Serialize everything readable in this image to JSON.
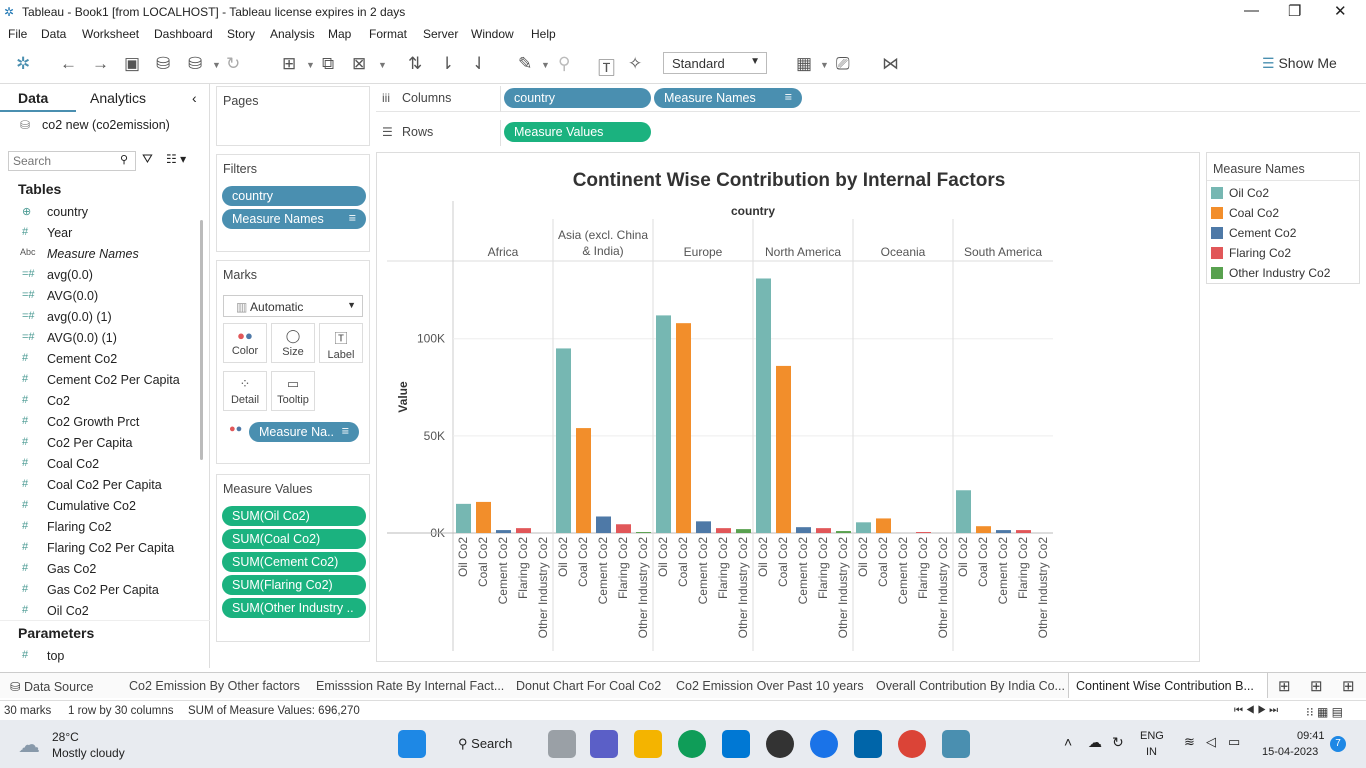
{
  "window": {
    "title": "Tableau - Book1 [from LOCALHOST] - Tableau license expires in 2 days"
  },
  "menu": [
    "File",
    "Data",
    "Worksheet",
    "Dashboard",
    "Story",
    "Analysis",
    "Map",
    "Format",
    "Server",
    "Window",
    "Help"
  ],
  "toolbar": {
    "fit": "Standard",
    "show_me": "Show Me"
  },
  "left": {
    "tab_data": "Data",
    "tab_analytics": "Analytics",
    "datasource": "co2 new (co2emission)",
    "search_placeholder": "Search",
    "tables_label": "Tables",
    "fields": [
      {
        "icon": "globe",
        "name": "country"
      },
      {
        "icon": "#",
        "name": "Year"
      },
      {
        "icon": "Abc",
        "name": "Measure Names"
      },
      {
        "icon": "=#",
        "name": "avg(0.0)"
      },
      {
        "icon": "=#",
        "name": "AVG(0.0)"
      },
      {
        "icon": "=#",
        "name": "avg(0.0) (1)"
      },
      {
        "icon": "=#",
        "name": "AVG(0.0) (1)"
      },
      {
        "icon": "#",
        "name": "Cement Co2"
      },
      {
        "icon": "#",
        "name": "Cement Co2 Per Capita"
      },
      {
        "icon": "#",
        "name": "Co2"
      },
      {
        "icon": "#",
        "name": "Co2 Growth Prct"
      },
      {
        "icon": "#",
        "name": "Co2 Per Capita"
      },
      {
        "icon": "#",
        "name": "Coal Co2"
      },
      {
        "icon": "#",
        "name": "Coal Co2 Per Capita"
      },
      {
        "icon": "#",
        "name": "Cumulative Co2"
      },
      {
        "icon": "#",
        "name": "Flaring Co2"
      },
      {
        "icon": "#",
        "name": "Flaring Co2 Per Capita"
      },
      {
        "icon": "#",
        "name": "Gas Co2"
      },
      {
        "icon": "#",
        "name": "Gas Co2 Per Capita"
      },
      {
        "icon": "#",
        "name": "Oil Co2"
      }
    ],
    "parameters_label": "Parameters",
    "parameters": [
      {
        "icon": "#",
        "name": "top"
      }
    ]
  },
  "cards": {
    "pages": "Pages",
    "filters": "Filters",
    "filter_pills": [
      "country",
      "Measure Names"
    ],
    "marks": "Marks",
    "mark_type": "Automatic",
    "mark_buttons": [
      "Color",
      "Size",
      "Label",
      "Detail",
      "Tooltip"
    ],
    "marks_pill": "Measure Na..",
    "measure_values": "Measure Values",
    "mv_pills": [
      "SUM(Oil Co2)",
      "SUM(Coal Co2)",
      "SUM(Cement Co2)",
      "SUM(Flaring Co2)",
      "SUM(Other Industry .."
    ]
  },
  "shelves": {
    "columns": "Columns",
    "rows": "Rows",
    "col_pills": [
      "country",
      "Measure Names"
    ],
    "row_pills": [
      "Measure Values"
    ]
  },
  "legend": {
    "title": "Measure Names",
    "items": [
      {
        "name": "Oil Co2",
        "color": "#76b7b2"
      },
      {
        "name": "Coal Co2",
        "color": "#f28e2b"
      },
      {
        "name": "Cement Co2",
        "color": "#4e79a7"
      },
      {
        "name": "Flaring Co2",
        "color": "#e15759"
      },
      {
        "name": "Other Industry Co2",
        "color": "#59a14f"
      }
    ]
  },
  "chart_data": {
    "type": "bar",
    "title": "Continent Wise Contribution by Internal Factors",
    "header": "country",
    "ylabel": "Value",
    "ylim": [
      0,
      140000
    ],
    "y_ticks": [
      {
        "v": 0,
        "label": "0K"
      },
      {
        "v": 50000,
        "label": "50K"
      },
      {
        "v": 100000,
        "label": "100K"
      }
    ],
    "categories": [
      "Africa",
      "Asia (excl. China & India)",
      "Europe",
      "North America",
      "Oceania",
      "South America"
    ],
    "measures": [
      "Oil Co2",
      "Coal Co2",
      "Cement Co2",
      "Flaring Co2",
      "Other Industry Co2"
    ],
    "colors": [
      "#76b7b2",
      "#f28e2b",
      "#4e79a7",
      "#e15759",
      "#59a14f"
    ],
    "values": [
      [
        15000,
        16000,
        1500,
        2500,
        0
      ],
      [
        95000,
        54000,
        8500,
        4500,
        500
      ],
      [
        112000,
        108000,
        6000,
        2500,
        2000
      ],
      [
        131000,
        86000,
        3000,
        2500,
        1000
      ],
      [
        5500,
        7500,
        0,
        500,
        0
      ],
      [
        22000,
        3500,
        1500,
        1500,
        0
      ]
    ]
  },
  "tabs": {
    "datasource": "Data Source",
    "sheets": [
      "Co2 Emission By Other factors",
      "Emisssion Rate By Internal Fact...",
      "Donut Chart For Coal Co2",
      "Co2 Emission Over Past 10 years",
      "Overall Contribution By India Co...",
      "Continent Wise Contribution B..."
    ]
  },
  "status": {
    "marks": "30 marks",
    "rows": "1 row by 30 columns",
    "sum": "SUM of Measure Values: 696,270"
  },
  "taskbar": {
    "temp": "28°C",
    "weather": "Mostly cloudy",
    "search": "Search",
    "lang1": "ENG",
    "lang2": "IN",
    "time": "09:41",
    "date": "15-04-2023",
    "notif": "7"
  }
}
